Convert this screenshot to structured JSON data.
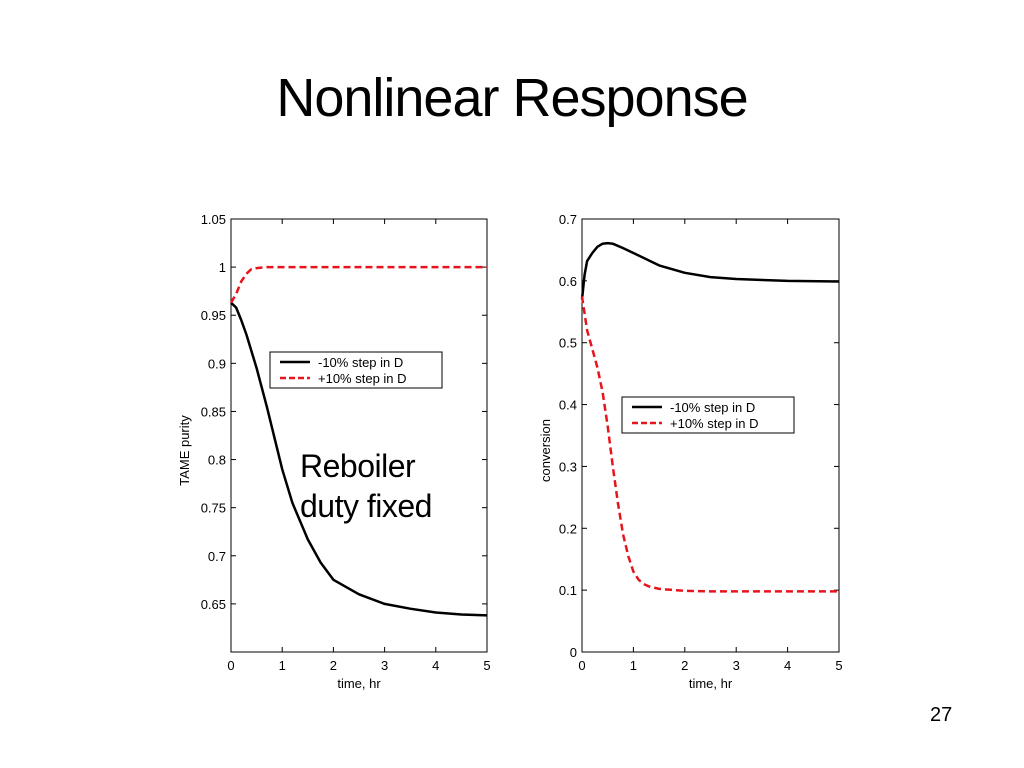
{
  "slide": {
    "title": "Nonlinear Response",
    "annotation_line1": "Reboiler",
    "annotation_line2": "duty fixed",
    "page_number": "27"
  },
  "chart_data": [
    {
      "type": "line",
      "title": "",
      "xlabel": "time, hr",
      "ylabel": "TAME purity",
      "xlim": [
        0,
        5
      ],
      "ylim": [
        0.6,
        1.05
      ],
      "xticks": [
        0,
        1,
        2,
        3,
        4,
        5
      ],
      "yticks": [
        0.65,
        0.7,
        0.75,
        0.8,
        0.85,
        0.9,
        0.95,
        1,
        1.05
      ],
      "ytick_labels": [
        "0.65",
        "0.7",
        "0.75",
        "0.8",
        "0.85",
        "0.9",
        "0.95",
        "1",
        "1.05"
      ],
      "grid": false,
      "legend_position": "upper-center",
      "series": [
        {
          "name": "-10% step in D",
          "color": "#000000",
          "style": "solid",
          "x": [
            0,
            0.1,
            0.2,
            0.3,
            0.5,
            0.7,
            1.0,
            1.2,
            1.5,
            1.75,
            2.0,
            2.5,
            3.0,
            3.5,
            4.0,
            4.5,
            5.0
          ],
          "y": [
            0.963,
            0.958,
            0.945,
            0.93,
            0.895,
            0.855,
            0.79,
            0.755,
            0.717,
            0.693,
            0.675,
            0.66,
            0.65,
            0.645,
            0.641,
            0.639,
            0.638
          ]
        },
        {
          "name": "+10% step in D",
          "color": "#e8141c",
          "style": "dashed",
          "x": [
            0,
            0.1,
            0.2,
            0.3,
            0.4,
            0.5,
            0.7,
            1.0,
            2.0,
            3.0,
            4.0,
            5.0
          ],
          "y": [
            0.963,
            0.972,
            0.985,
            0.993,
            0.998,
            0.999,
            1.0,
            1.0,
            1.0,
            1.0,
            1.0,
            1.0
          ]
        }
      ]
    },
    {
      "type": "line",
      "title": "",
      "xlabel": "time, hr",
      "ylabel": "conversion",
      "xlim": [
        0,
        5
      ],
      "ylim": [
        0,
        0.7
      ],
      "xticks": [
        0,
        1,
        2,
        3,
        4,
        5
      ],
      "yticks": [
        0,
        0.1,
        0.2,
        0.3,
        0.4,
        0.5,
        0.6,
        0.7
      ],
      "ytick_labels": [
        "0",
        "0.1",
        "0.2",
        "0.3",
        "0.4",
        "0.5",
        "0.6",
        "0.7"
      ],
      "grid": false,
      "legend_position": "center-right",
      "series": [
        {
          "name": "-10% step in D",
          "color": "#000000",
          "style": "solid",
          "x": [
            0,
            0.05,
            0.1,
            0.2,
            0.3,
            0.4,
            0.5,
            0.6,
            0.8,
            1.0,
            1.5,
            2.0,
            2.5,
            3.0,
            4.0,
            5.0
          ],
          "y": [
            0.57,
            0.61,
            0.632,
            0.645,
            0.655,
            0.66,
            0.661,
            0.66,
            0.653,
            0.645,
            0.625,
            0.613,
            0.606,
            0.603,
            0.6,
            0.599
          ]
        },
        {
          "name": "+10% step in D",
          "color": "#e8141c",
          "style": "dashed",
          "x": [
            0,
            0.1,
            0.2,
            0.3,
            0.4,
            0.5,
            0.6,
            0.7,
            0.8,
            0.9,
            1.0,
            1.1,
            1.2,
            1.3,
            1.5,
            1.8,
            2.0,
            2.5,
            3.0,
            4.0,
            5.0
          ],
          "y": [
            0.575,
            0.52,
            0.49,
            0.46,
            0.42,
            0.365,
            0.3,
            0.24,
            0.19,
            0.155,
            0.13,
            0.117,
            0.11,
            0.106,
            0.102,
            0.1,
            0.099,
            0.098,
            0.098,
            0.098,
            0.098
          ]
        }
      ]
    }
  ]
}
